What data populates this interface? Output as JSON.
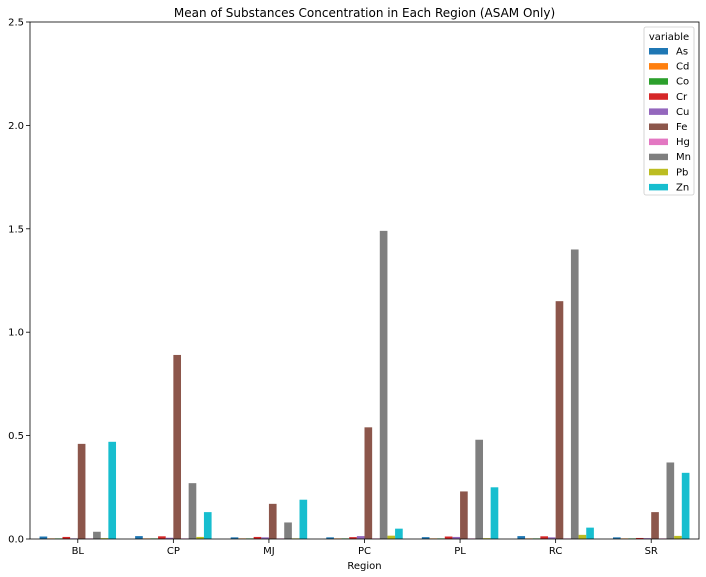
{
  "chart_data": {
    "type": "bar",
    "title": "Mean of Substances Concentration in Each Region (ASAM Only)",
    "xlabel": "Region",
    "ylabel": "",
    "ylim": [
      0,
      2.5
    ],
    "yticks": [
      "0.0",
      "0.5",
      "1.0",
      "1.5",
      "2.0",
      "2.5"
    ],
    "grid": false,
    "legend_placement": "top-right",
    "legend_title": "variable",
    "categories": [
      "BL",
      "CP",
      "MJ",
      "PC",
      "PL",
      "RC",
      "SR"
    ],
    "series": [
      {
        "name": "As",
        "color": "#1f77b4",
        "values": [
          0.012,
          0.014,
          0.008,
          0.008,
          0.009,
          0.014,
          0.008
        ]
      },
      {
        "name": "Cd",
        "color": "#ff7f0e",
        "values": [
          0.001,
          0.001,
          0.001,
          0.001,
          0.001,
          0.001,
          0.001
        ]
      },
      {
        "name": "Co",
        "color": "#2ca02c",
        "values": [
          0.002,
          0.002,
          0.002,
          0.002,
          0.002,
          0.002,
          0.002
        ]
      },
      {
        "name": "Cr",
        "color": "#d62728",
        "values": [
          0.01,
          0.013,
          0.01,
          0.009,
          0.012,
          0.013,
          0.005
        ]
      },
      {
        "name": "Cu",
        "color": "#9467bd",
        "values": [
          0.003,
          0.006,
          0.008,
          0.014,
          0.01,
          0.008,
          0.004
        ]
      },
      {
        "name": "Fe",
        "color": "#8c564b",
        "values": [
          0.46,
          0.89,
          0.17,
          0.54,
          0.23,
          1.15,
          0.13
        ]
      },
      {
        "name": "Hg",
        "color": "#e377c2",
        "values": [
          0.001,
          0.001,
          0.001,
          0.001,
          0.001,
          0.001,
          0.001
        ]
      },
      {
        "name": "Mn",
        "color": "#7f7f7f",
        "values": [
          0.035,
          0.27,
          0.08,
          1.49,
          0.48,
          1.4,
          0.37
        ]
      },
      {
        "name": "Pb",
        "color": "#bcbd22",
        "values": [
          0.004,
          0.01,
          0.003,
          0.016,
          0.004,
          0.02,
          0.015
        ]
      },
      {
        "name": "Zn",
        "color": "#17becf",
        "values": [
          0.47,
          0.13,
          0.19,
          0.05,
          0.25,
          0.055,
          0.32
        ]
      }
    ]
  }
}
